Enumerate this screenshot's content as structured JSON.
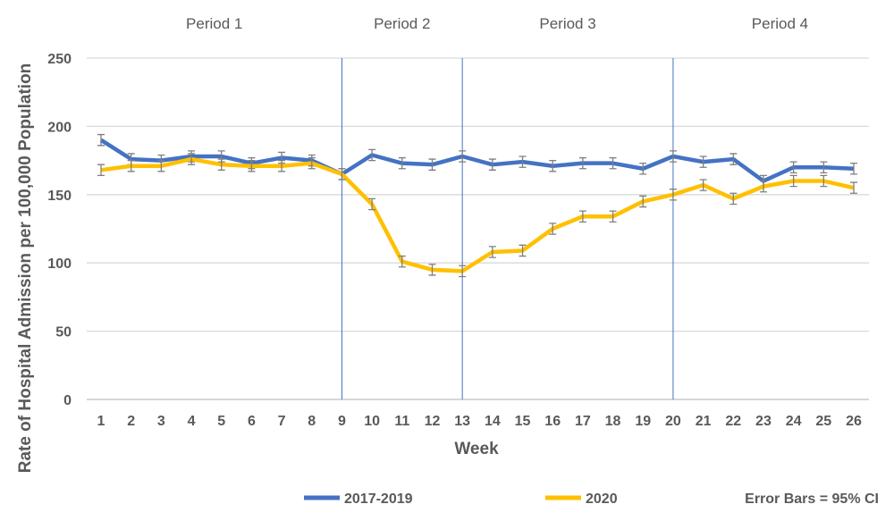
{
  "chart_data": {
    "type": "line",
    "title": "",
    "xlabel": "Week",
    "ylabel": "Rate of Hospital Admission per 100,000 Population",
    "ylim": [
      0,
      250
    ],
    "yticks": [
      0,
      50,
      100,
      150,
      200,
      250
    ],
    "x": [
      1,
      2,
      3,
      4,
      5,
      6,
      7,
      8,
      9,
      10,
      11,
      12,
      13,
      14,
      15,
      16,
      17,
      18,
      19,
      20,
      21,
      22,
      23,
      24,
      25,
      26
    ],
    "grid": true,
    "periods": [
      {
        "label": "Period 1",
        "start": 1,
        "end": 9
      },
      {
        "label": "Period 2",
        "start": 9,
        "end": 13
      },
      {
        "label": "Period 3",
        "start": 13,
        "end": 20
      },
      {
        "label": "Period 4",
        "start": 20,
        "end": 26
      }
    ],
    "dividers": [
      9,
      13,
      20
    ],
    "series": [
      {
        "name": "2017-2019",
        "color": "#4472C4",
        "values": [
          190,
          176,
          175,
          178,
          178,
          173,
          177,
          175,
          165,
          179,
          173,
          172,
          178,
          172,
          174,
          171,
          173,
          173,
          169,
          178,
          174,
          176,
          160,
          170,
          170,
          169
        ],
        "ci": 4
      },
      {
        "name": "2020",
        "color": "#FFC000",
        "values": [
          168,
          171,
          171,
          176,
          172,
          171,
          171,
          173,
          165,
          143,
          101,
          95,
          94,
          108,
          109,
          125,
          134,
          134,
          145,
          150,
          157,
          147,
          156,
          160,
          160,
          155
        ],
        "ci": 4
      }
    ],
    "legend_position": "bottom",
    "annotation": "Error Bars = 95% CI"
  }
}
